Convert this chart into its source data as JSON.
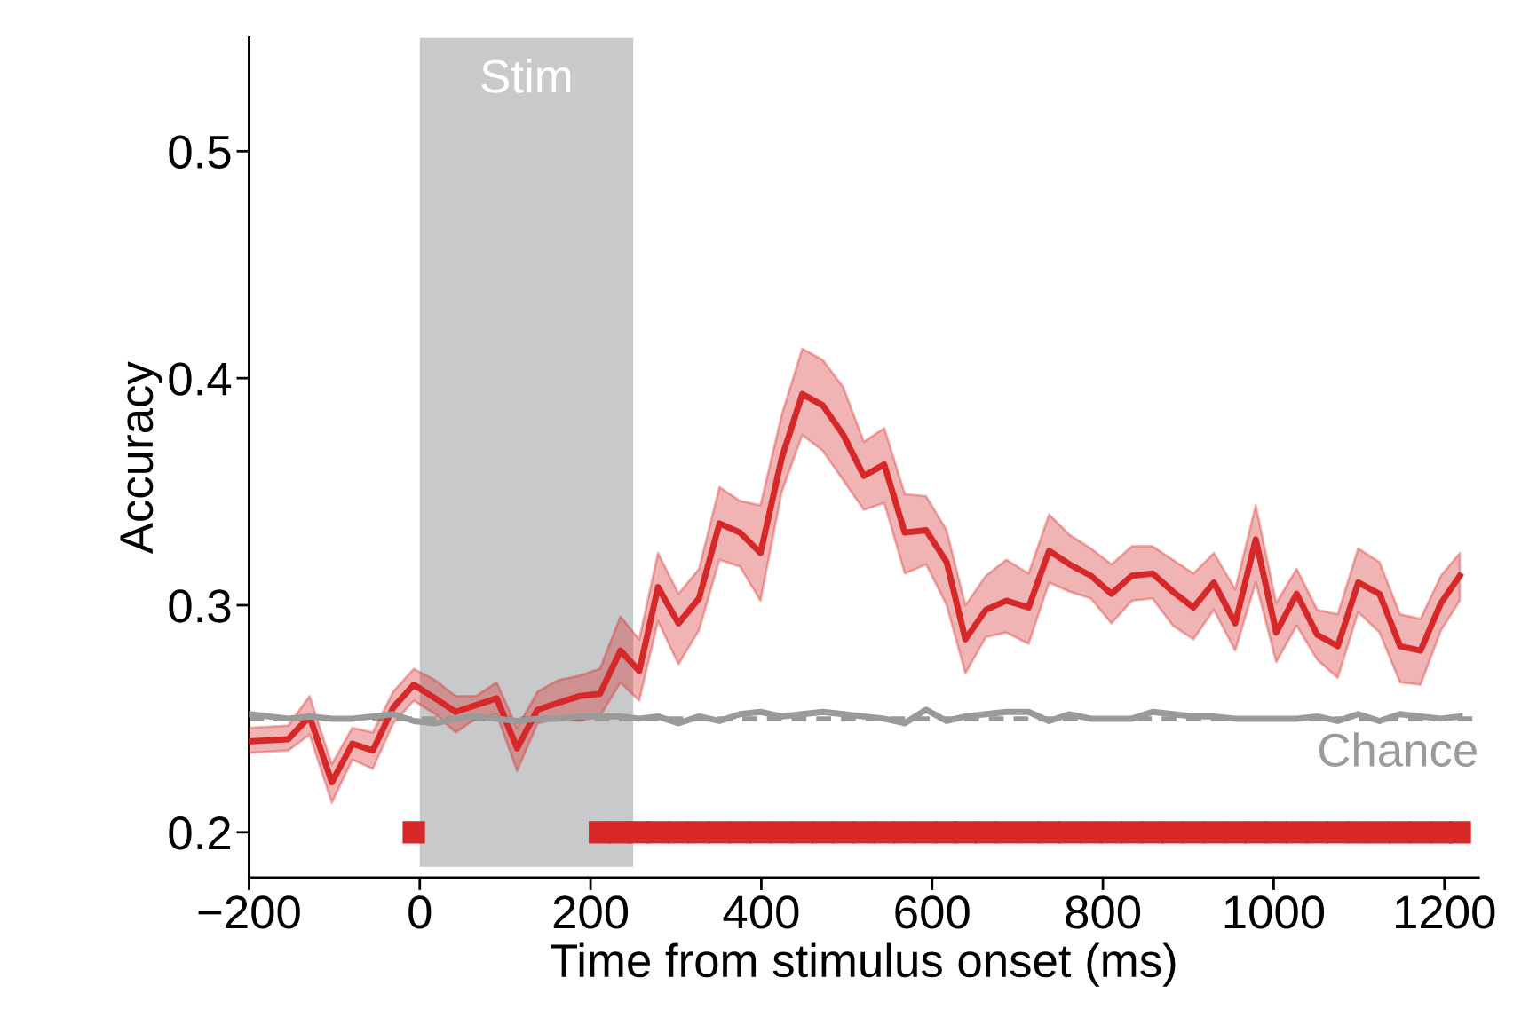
{
  "chart_data": {
    "type": "line",
    "xlabel": "Time from stimulus onset (ms)",
    "ylabel": "Accuracy",
    "x": [
      -200,
      -154,
      -129,
      -103,
      -79,
      -55,
      -31,
      -7,
      18,
      42,
      66,
      90,
      114,
      138,
      162,
      187,
      211,
      235,
      257,
      279,
      303,
      327,
      351,
      375,
      399,
      424,
      448,
      472,
      496,
      520,
      544,
      568,
      593,
      617,
      639,
      663,
      687,
      713,
      737,
      761,
      786,
      810,
      834,
      858,
      882,
      906,
      930,
      955,
      979,
      1003,
      1027,
      1051,
      1075,
      1099,
      1124,
      1148,
      1172,
      1196,
      1218
    ],
    "series": [
      {
        "color": "#d62828",
        "values": [
          0.24,
          0.241,
          0.251,
          0.222,
          0.239,
          0.236,
          0.255,
          0.265,
          0.259,
          0.253,
          0.256,
          0.259,
          0.237,
          0.254,
          0.257,
          0.26,
          0.261,
          0.28,
          0.271,
          0.308,
          0.292,
          0.303,
          0.336,
          0.332,
          0.323,
          0.365,
          0.393,
          0.388,
          0.375,
          0.357,
          0.362,
          0.332,
          0.333,
          0.319,
          0.285,
          0.298,
          0.302,
          0.299,
          0.324,
          0.318,
          0.313,
          0.305,
          0.313,
          0.314,
          0.306,
          0.299,
          0.31,
          0.292,
          0.329,
          0.288,
          0.305,
          0.287,
          0.282,
          0.31,
          0.305,
          0.282,
          0.28,
          0.301,
          0.313
        ],
        "lower": [
          0.235,
          0.236,
          0.243,
          0.213,
          0.232,
          0.228,
          0.248,
          0.258,
          0.252,
          0.244,
          0.25,
          0.252,
          0.227,
          0.248,
          0.25,
          0.249,
          0.251,
          0.266,
          0.258,
          0.293,
          0.274,
          0.289,
          0.32,
          0.317,
          0.302,
          0.35,
          0.375,
          0.368,
          0.355,
          0.342,
          0.345,
          0.314,
          0.318,
          0.3,
          0.27,
          0.286,
          0.288,
          0.283,
          0.31,
          0.306,
          0.303,
          0.292,
          0.302,
          0.303,
          0.291,
          0.285,
          0.298,
          0.28,
          0.31,
          0.275,
          0.291,
          0.276,
          0.268,
          0.297,
          0.288,
          0.266,
          0.265,
          0.289,
          0.302
        ],
        "upper": [
          0.246,
          0.247,
          0.26,
          0.23,
          0.246,
          0.244,
          0.262,
          0.272,
          0.267,
          0.26,
          0.26,
          0.266,
          0.246,
          0.262,
          0.267,
          0.269,
          0.272,
          0.295,
          0.285,
          0.323,
          0.305,
          0.316,
          0.352,
          0.346,
          0.344,
          0.384,
          0.413,
          0.408,
          0.396,
          0.372,
          0.378,
          0.349,
          0.348,
          0.333,
          0.3,
          0.313,
          0.32,
          0.314,
          0.34,
          0.331,
          0.325,
          0.318,
          0.326,
          0.326,
          0.32,
          0.314,
          0.323,
          0.307,
          0.344,
          0.301,
          0.316,
          0.298,
          0.296,
          0.325,
          0.319,
          0.296,
          0.294,
          0.313,
          0.323
        ]
      },
      {
        "color": "#9a9a9a",
        "values": [
          0.252,
          0.25,
          0.251,
          0.25,
          0.25,
          0.251,
          0.252,
          0.249,
          0.248,
          0.25,
          0.251,
          0.25,
          0.249,
          0.25,
          0.25,
          0.251,
          0.251,
          0.251,
          0.25,
          0.251,
          0.248,
          0.251,
          0.249,
          0.252,
          0.253,
          0.251,
          0.252,
          0.253,
          0.252,
          0.251,
          0.25,
          0.248,
          0.254,
          0.249,
          0.251,
          0.252,
          0.253,
          0.253,
          0.249,
          0.252,
          0.25,
          0.25,
          0.25,
          0.253,
          0.252,
          0.251,
          0.251,
          0.25,
          0.25,
          0.25,
          0.25,
          0.251,
          0.249,
          0.252,
          0.249,
          0.252,
          0.251,
          0.25,
          0.251
        ]
      },
      {
        "type": "scatter",
        "marker": "square",
        "color": "#d62828",
        "x": [
          -7,
          211,
          235,
          257,
          279,
          303,
          327,
          351,
          375,
          399,
          424,
          448,
          472,
          496,
          520,
          544,
          568,
          593,
          617,
          639,
          663,
          687,
          713,
          737,
          761,
          786,
          810,
          834,
          858,
          882,
          906,
          930,
          955,
          979,
          1003,
          1027,
          1051,
          1075,
          1099,
          1124,
          1148,
          1172,
          1196,
          1218
        ],
        "values": [
          0.2,
          0.2,
          0.2,
          0.2,
          0.2,
          0.2,
          0.2,
          0.2,
          0.2,
          0.2,
          0.2,
          0.2,
          0.2,
          0.2,
          0.2,
          0.2,
          0.2,
          0.2,
          0.2,
          0.2,
          0.2,
          0.2,
          0.2,
          0.2,
          0.2,
          0.2,
          0.2,
          0.2,
          0.2,
          0.2,
          0.2,
          0.2,
          0.2,
          0.2,
          0.2,
          0.2,
          0.2,
          0.2,
          0.2,
          0.2,
          0.2,
          0.2,
          0.2,
          0.2
        ]
      }
    ],
    "xlim": [
      -200,
      1240
    ],
    "ylim": [
      0.18,
      0.55
    ],
    "xticks": [
      {
        "value": -200,
        "label": "−200"
      },
      0,
      200,
      400,
      600,
      800,
      1000,
      1200
    ],
    "yticks": [
      0.2,
      0.3,
      0.4,
      0.5
    ],
    "bands": [
      {
        "axis": "x",
        "from": 0,
        "to": 250,
        "label": "Stim",
        "color": "#c8c9cb"
      }
    ],
    "ref_lines": [
      {
        "axis": "y",
        "value": 0.25,
        "label": "Chance",
        "color": "#9a9a9a",
        "line_style": "dashed"
      }
    ],
    "grid": false,
    "legend": false
  }
}
